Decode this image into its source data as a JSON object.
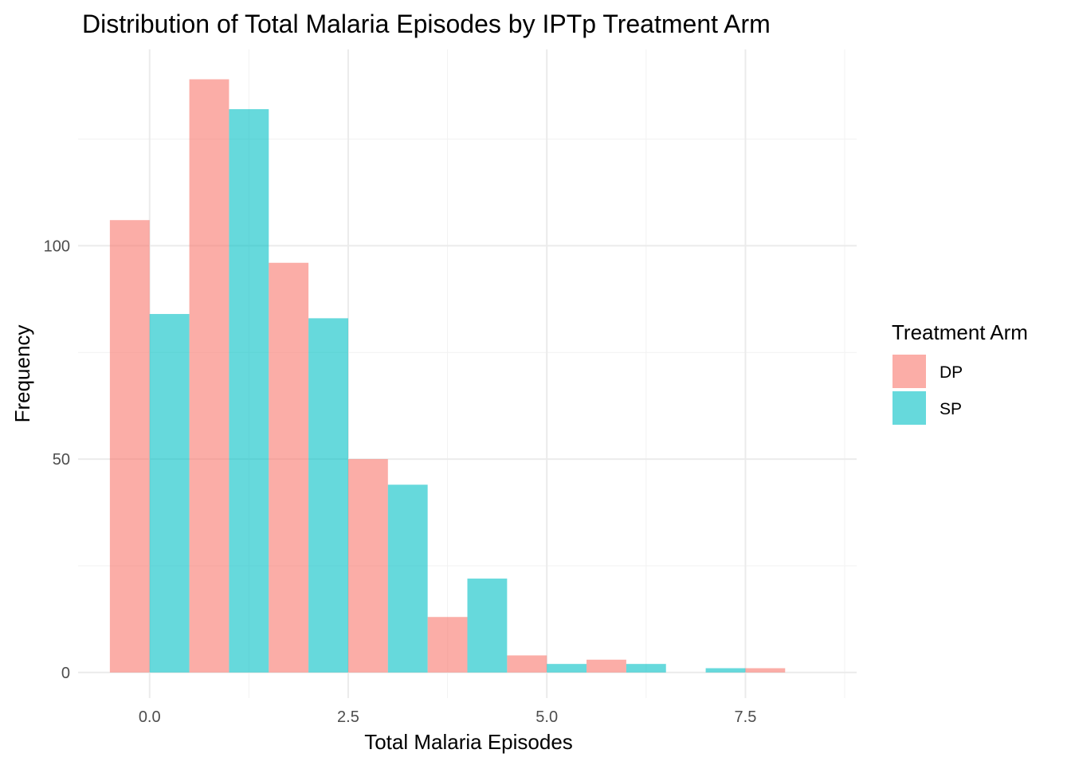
{
  "chart_data": {
    "type": "bar",
    "title": "Distribution of Total Malaria Episodes by IPTp Treatment Arm",
    "xlabel": "Total Malaria Episodes",
    "ylabel": "Frequency",
    "xlim": [
      -0.9,
      8.9
    ],
    "ylim": [
      -6,
      146
    ],
    "x_ticks": [
      0,
      2.5,
      5,
      7.5
    ],
    "x_tick_labels": [
      "0.0",
      "2.5",
      "5.0",
      "7.5"
    ],
    "y_ticks": [
      0,
      50,
      100
    ],
    "y_tick_labels": [
      "0",
      "50",
      "100"
    ],
    "grid": true,
    "legend_position": "right",
    "legend_title": "Treatment Arm",
    "bin_width": 1,
    "dodge": true,
    "categories": [
      0,
      1,
      2,
      3,
      4,
      5,
      6,
      7,
      8
    ],
    "series": [
      {
        "name": "DP",
        "color": "#F8766D",
        "values": [
          106,
          139,
          96,
          50,
          13,
          4,
          3,
          0,
          1
        ]
      },
      {
        "name": "SP",
        "color": "#00BFC4",
        "values": [
          84,
          132,
          83,
          44,
          22,
          2,
          2,
          1,
          0
        ]
      }
    ]
  }
}
